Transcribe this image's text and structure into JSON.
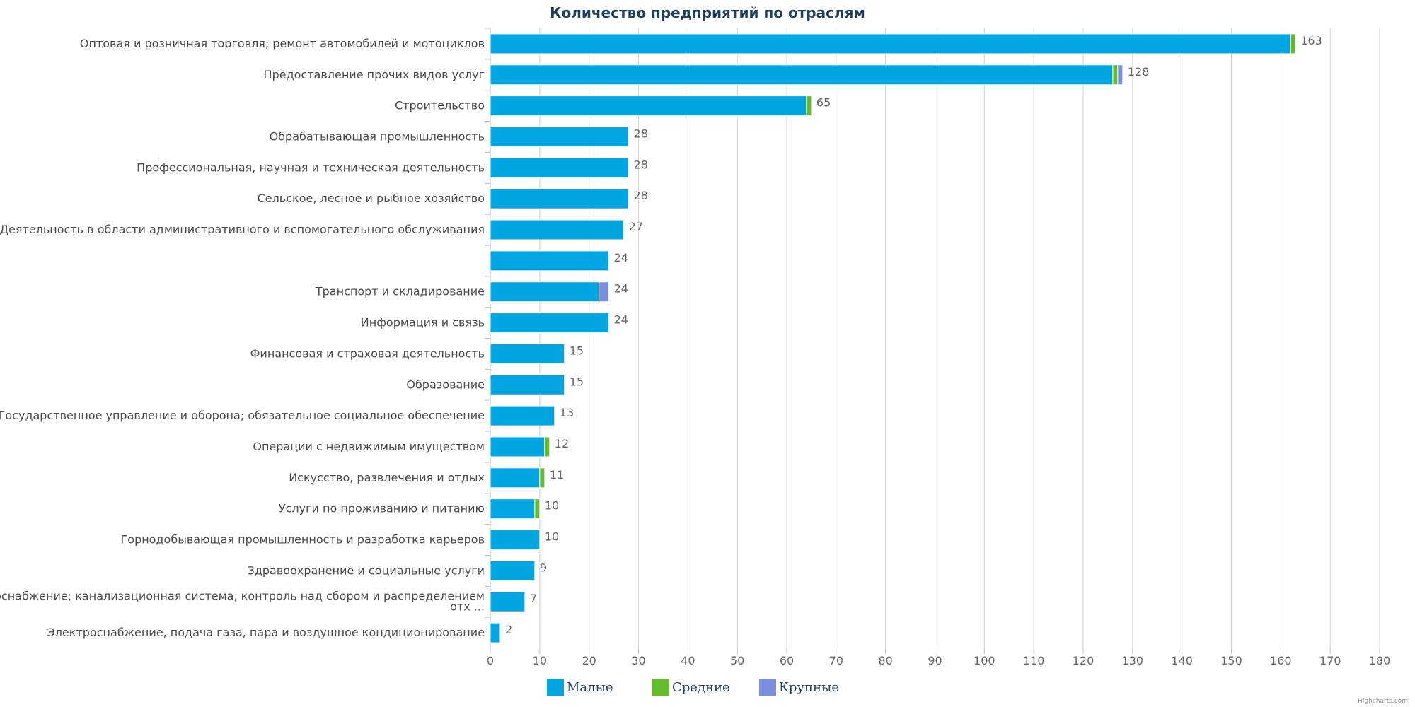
{
  "chart_data": {
    "type": "bar",
    "orientation": "horizontal",
    "stacked": true,
    "title": "Количество предприятий по отраслям",
    "xlim": [
      0,
      180
    ],
    "x_ticks": [
      0,
      10,
      20,
      30,
      40,
      50,
      60,
      70,
      80,
      90,
      100,
      110,
      120,
      130,
      140,
      150,
      160,
      170,
      180
    ],
    "grid": true,
    "legend_position": "bottom",
    "categories": [
      [
        "Оптовая и розничная торговля; ремонт автомобилей и мотоциклов"
      ],
      [
        "Предоставление прочих видов услуг"
      ],
      [
        "Строительство"
      ],
      [
        "Обрабатывающая промышленность"
      ],
      [
        "Профессиональная, научная и техническая деятельность"
      ],
      [
        "Сельское, лесное и рыбное хозяйство"
      ],
      [
        "Деятельность в области административного и вспомогательного обслуживания"
      ],
      [
        ""
      ],
      [
        "Транспорт и складирование"
      ],
      [
        "Информация и связь"
      ],
      [
        "Финансовая и страховая деятельность"
      ],
      [
        "Образование"
      ],
      [
        "Государственное управление и оборона; обязательное социальное обеспечение"
      ],
      [
        "Операции с недвижимым имуществом"
      ],
      [
        "Искусство, развлечения и отдых"
      ],
      [
        "Услуги по проживанию и питанию"
      ],
      [
        "Горнодобывающая промышленность и разработка карьеров"
      ],
      [
        "Здравоохранение и социальные услуги"
      ],
      [
        "Водоснабжение; канализационная система, контроль над сбором и распределением",
        "отх ..."
      ],
      [
        "Электроснабжение, подача газа, пара и воздушное кондиционирование"
      ]
    ],
    "series": [
      {
        "name": "Малые",
        "color": "#00a5e2",
        "values": [
          162,
          126,
          64,
          28,
          28,
          28,
          27,
          24,
          22,
          24,
          15,
          15,
          13,
          11,
          10,
          9,
          10,
          9,
          7,
          2
        ]
      },
      {
        "name": "Средние",
        "color": "#65bc2b",
        "values": [
          1,
          1,
          1,
          0,
          0,
          0,
          0,
          0,
          0,
          0,
          0,
          0,
          0,
          1,
          1,
          1,
          0,
          0,
          0,
          0
        ]
      },
      {
        "name": "Крупные",
        "color": "#7a8fdf",
        "values": [
          0,
          1,
          0,
          0,
          0,
          0,
          0,
          0,
          2,
          0,
          0,
          0,
          0,
          0,
          0,
          0,
          0,
          0,
          0,
          0
        ]
      }
    ],
    "totals": [
      163,
      128,
      65,
      28,
      28,
      28,
      27,
      24,
      24,
      24,
      15,
      15,
      13,
      12,
      11,
      10,
      10,
      9,
      7,
      2
    ]
  },
  "credits": "Highcharts.com"
}
